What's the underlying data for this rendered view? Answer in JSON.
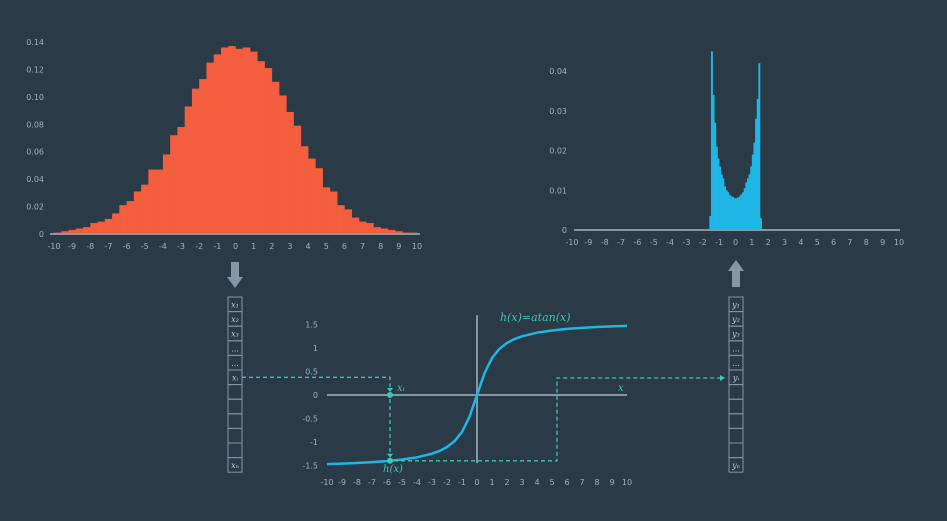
{
  "colors": {
    "background": "#2b3a47",
    "axis": "#8596a4",
    "tick_text": "#a3b1bd",
    "input_hist": "#f35e3f",
    "output_hist": "#1fb6e6",
    "curve": "#1fb6e6",
    "dashed": "#3ec6b7",
    "cell_border": "#8596a4",
    "cell_text": "#c4ced6"
  },
  "icons": {
    "down_arrow": "arrow-down-icon",
    "up_arrow": "arrow-up-icon"
  },
  "labels": {
    "function": "h(x)=atan(x)",
    "x_axis": "x",
    "xi": "xᵢ",
    "hx": "h(x)"
  },
  "input_vector": [
    "x₁",
    "x₂",
    "x₃",
    "...",
    "...",
    "xᵢ",
    "",
    "",
    "",
    "",
    "",
    "xₙ"
  ],
  "output_vector": [
    "y₁",
    "y₂",
    "y₃",
    "...",
    "...",
    "yᵢ",
    "",
    "",
    "",
    "",
    "",
    "yₙ"
  ],
  "chart_data": [
    {
      "type": "bar",
      "title": "",
      "xlabel": "",
      "ylabel": "",
      "xlim": [
        -10,
        10
      ],
      "ylim": [
        0,
        0.14
      ],
      "x_ticks": [
        "-10",
        "-9",
        "-8",
        "-7",
        "-6",
        "-5",
        "-4",
        "-3",
        "-2",
        "-1",
        "0",
        "1",
        "2",
        "3",
        "4",
        "5",
        "6",
        "7",
        "8",
        "9",
        "10"
      ],
      "y_ticks": [
        "0",
        "0.02",
        "0.04",
        "0.06",
        "0.08",
        "0.10",
        "0.12",
        "0.14"
      ],
      "x": [
        -9.8,
        -9.4,
        -9.0,
        -8.6,
        -8.2,
        -7.8,
        -7.4,
        -7.0,
        -6.6,
        -6.2,
        -5.8,
        -5.4,
        -5.0,
        -4.6,
        -4.2,
        -3.8,
        -3.4,
        -3.0,
        -2.6,
        -2.2,
        -1.8,
        -1.4,
        -1.0,
        -0.6,
        -0.2,
        0.2,
        0.6,
        1.0,
        1.4,
        1.8,
        2.2,
        2.6,
        3.0,
        3.4,
        3.8,
        4.2,
        4.6,
        5.0,
        5.4,
        5.8,
        6.2,
        6.6,
        7.0,
        7.4,
        7.8,
        8.2,
        8.6,
        9.0,
        9.4,
        9.8
      ],
      "values": [
        0.001,
        0.002,
        0.003,
        0.004,
        0.005,
        0.008,
        0.009,
        0.011,
        0.015,
        0.021,
        0.024,
        0.031,
        0.036,
        0.047,
        0.047,
        0.058,
        0.072,
        0.078,
        0.093,
        0.106,
        0.113,
        0.125,
        0.131,
        0.136,
        0.137,
        0.135,
        0.136,
        0.133,
        0.126,
        0.121,
        0.111,
        0.101,
        0.089,
        0.079,
        0.064,
        0.055,
        0.048,
        0.034,
        0.031,
        0.021,
        0.018,
        0.012,
        0.009,
        0.008,
        0.005,
        0.004,
        0.003,
        0.002,
        0.001,
        0.001
      ]
    },
    {
      "type": "line",
      "title": "",
      "xlabel": "x",
      "ylabel": "",
      "xlim": [
        -10,
        10
      ],
      "ylim": [
        -1.5,
        1.5
      ],
      "x_ticks": [
        "-10",
        "-9",
        "-8",
        "-7",
        "-6",
        "-5",
        "-4",
        "-3",
        "-2",
        "-1",
        "0",
        "1",
        "2",
        "3",
        "4",
        "5",
        "6",
        "7",
        "8",
        "9",
        "10"
      ],
      "y_ticks": [
        "-1.5",
        "-1",
        "-0.5",
        "0",
        "0.5",
        "1",
        "1.5"
      ],
      "series": [
        {
          "name": "h(x)=atan(x)",
          "x": [
            -10,
            -9,
            -8,
            -7,
            -6,
            -5,
            -4,
            -3,
            -2.5,
            -2,
            -1.5,
            -1,
            -0.5,
            0,
            0.5,
            1,
            1.5,
            2,
            2.5,
            3,
            4,
            5,
            6,
            7,
            8,
            9,
            10
          ],
          "values": [
            -1.471,
            -1.46,
            -1.446,
            -1.429,
            -1.406,
            -1.373,
            -1.326,
            -1.249,
            -1.19,
            -1.107,
            -0.983,
            -0.785,
            -0.464,
            0,
            0.464,
            0.785,
            0.983,
            1.107,
            1.19,
            1.249,
            1.326,
            1.373,
            1.406,
            1.429,
            1.446,
            1.46,
            1.471
          ]
        }
      ],
      "annotations": [
        {
          "label": "xᵢ",
          "x": -5.8,
          "y": 0
        },
        {
          "label": "h(x)",
          "x": -5.8,
          "y": -1.399
        }
      ]
    },
    {
      "type": "bar",
      "title": "",
      "xlabel": "",
      "ylabel": "",
      "xlim": [
        -10,
        10
      ],
      "ylim": [
        0,
        0.045
      ],
      "x_ticks": [
        "-10",
        "-9",
        "-8",
        "-7",
        "-6",
        "-5",
        "-4",
        "-3",
        "-2",
        "-1",
        "0",
        "1",
        "2",
        "3",
        "4",
        "5",
        "6",
        "7",
        "8",
        "9",
        "10"
      ],
      "y_ticks": [
        "0",
        "0.01",
        "0.02",
        "0.03",
        "0.04"
      ],
      "x": [
        -1.55,
        -1.45,
        -1.35,
        -1.25,
        -1.15,
        -1.05,
        -0.95,
        -0.85,
        -0.75,
        -0.65,
        -0.55,
        -0.45,
        -0.35,
        -0.25,
        -0.15,
        -0.05,
        0.05,
        0.15,
        0.25,
        0.35,
        0.45,
        0.55,
        0.65,
        0.75,
        0.85,
        0.95,
        1.05,
        1.15,
        1.25,
        1.35,
        1.45,
        1.55
      ],
      "values": [
        0.0035,
        0.045,
        0.034,
        0.027,
        0.021,
        0.018,
        0.016,
        0.014,
        0.013,
        0.011,
        0.01,
        0.0095,
        0.0088,
        0.0085,
        0.0083,
        0.008,
        0.008,
        0.0082,
        0.0085,
        0.009,
        0.0095,
        0.0105,
        0.012,
        0.013,
        0.014,
        0.016,
        0.019,
        0.022,
        0.028,
        0.033,
        0.042,
        0.003
      ]
    }
  ]
}
